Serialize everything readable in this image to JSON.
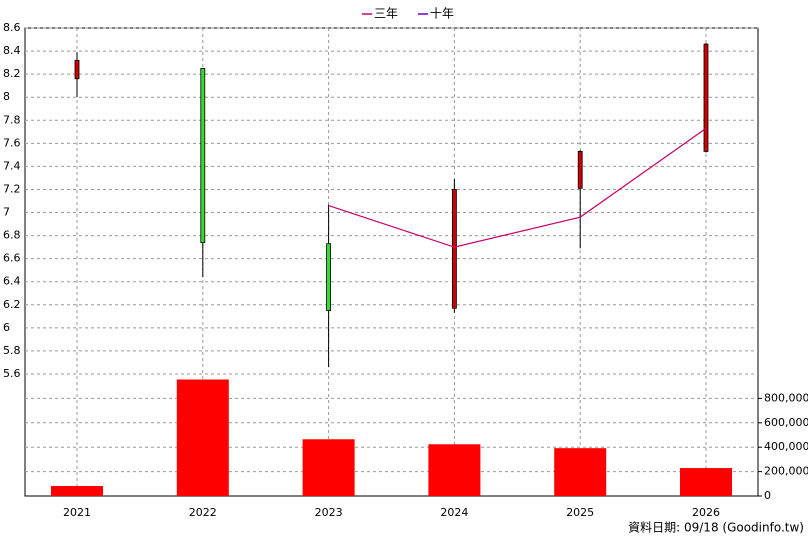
{
  "chart_data": {
    "type": "candlestick",
    "categories": [
      "2021",
      "2022",
      "2023",
      "2024",
      "2025",
      "2026"
    ],
    "open": [
      8.16,
      8.25,
      6.73,
      6.17,
      7.21,
      7.53
    ],
    "high": [
      8.39,
      8.25,
      7.07,
      7.29,
      7.54,
      8.47
    ],
    "low": [
      8.0,
      6.44,
      5.66,
      6.13,
      6.69,
      7.52
    ],
    "close": [
      8.32,
      6.74,
      6.15,
      7.2,
      7.53,
      8.46
    ],
    "up_color": "#cc0000",
    "down_color": "#33dd33",
    "ylim": [
      5.6,
      8.6
    ],
    "yticks": [
      5.6,
      5.8,
      6,
      6.2,
      6.4,
      6.6,
      6.8,
      7,
      7.2,
      7.4,
      7.6,
      7.8,
      8,
      8.2,
      8.4,
      8.6
    ],
    "volume": {
      "color": "#ff0000",
      "values": [
        82000,
        955000,
        465000,
        424000,
        392000,
        229000
      ]
    },
    "y2lim": [
      0,
      1000000
    ],
    "y2ticks": [
      {
        "value": 0,
        "label": "0"
      },
      {
        "value": 200000,
        "label": "200,000"
      },
      {
        "value": 400000,
        "label": "400,000"
      },
      {
        "value": 600000,
        "label": "600,000"
      },
      {
        "value": 800000,
        "label": "800,000"
      }
    ],
    "series": [
      {
        "name": "三年",
        "color": "#cc0066",
        "values": [
          null,
          null,
          7.06,
          6.7,
          6.96,
          7.73
        ]
      },
      {
        "name": "十年",
        "color": "#6600cc",
        "values": [
          null,
          null,
          null,
          null,
          null,
          null
        ]
      }
    ],
    "grid": true,
    "source": "資料日期: 09/18  (Goodinfo.tw)"
  }
}
